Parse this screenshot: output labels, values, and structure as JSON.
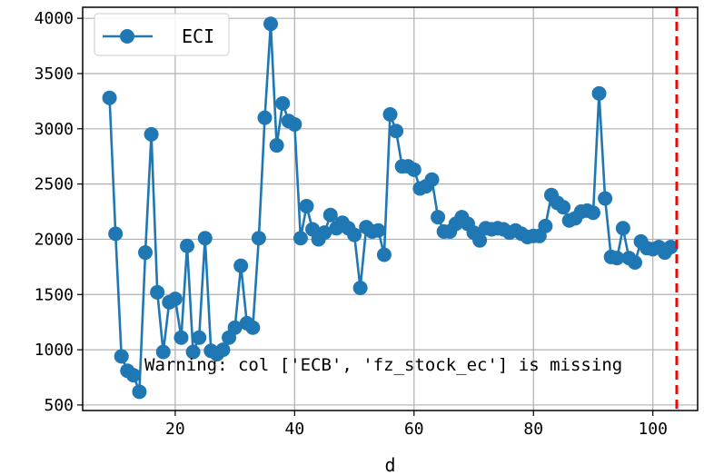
{
  "chart_data": {
    "type": "line",
    "title": "",
    "xlabel": "d",
    "ylabel": "",
    "xlim": [
      4.5,
      107.5
    ],
    "ylim": [
      450,
      4100
    ],
    "xticks": [
      20,
      40,
      60,
      80,
      100
    ],
    "yticks": [
      500,
      1000,
      1500,
      2000,
      2500,
      3000,
      3500,
      4000
    ],
    "grid": true,
    "legend_position": "top-left",
    "series": [
      {
        "name": "ECI",
        "color": "#1f77b4",
        "marker": "circle",
        "x": [
          9,
          10,
          11,
          12,
          13,
          14,
          15,
          16,
          17,
          18,
          19,
          20,
          21,
          22,
          23,
          24,
          25,
          26,
          27,
          28,
          29,
          30,
          31,
          32,
          33,
          34,
          35,
          36,
          37,
          38,
          39,
          40,
          41,
          42,
          43,
          44,
          45,
          46,
          47,
          48,
          49,
          50,
          51,
          52,
          53,
          54,
          55,
          56,
          57,
          58,
          59,
          60,
          61,
          62,
          63,
          64,
          65,
          66,
          67,
          68,
          69,
          70,
          71,
          72,
          73,
          74,
          75,
          76,
          77,
          78,
          79,
          80,
          81,
          82,
          83,
          84,
          85,
          86,
          87,
          88,
          89,
          90,
          91,
          92,
          93,
          94,
          95,
          96,
          97,
          98,
          99,
          100,
          101,
          102,
          103
        ],
        "y": [
          3280,
          2050,
          940,
          810,
          770,
          620,
          1880,
          2950,
          1520,
          980,
          1430,
          1460,
          1110,
          1940,
          980,
          1110,
          2010,
          990,
          960,
          1000,
          1110,
          1200,
          1760,
          1240,
          1200,
          2010,
          3100,
          3950,
          2850,
          3230,
          3070,
          3040,
          2010,
          2300,
          2090,
          2000,
          2060,
          2220,
          2100,
          2150,
          2100,
          2040,
          1560,
          2110,
          2070,
          2080,
          1860,
          3130,
          2980,
          2660,
          2660,
          2630,
          2460,
          2480,
          2540,
          2200,
          2070,
          2070,
          2140,
          2200,
          2140,
          2060,
          1990,
          2100,
          2090,
          2100,
          2090,
          2060,
          2080,
          2050,
          2020,
          2030,
          2030,
          2120,
          2400,
          2330,
          2290,
          2170,
          2190,
          2250,
          2260,
          2240,
          3320,
          2370,
          1840,
          1830,
          2100,
          1830,
          1790,
          1980,
          1920,
          1910,
          1930,
          1880,
          1930
        ]
      }
    ],
    "reference_line": {
      "x": 104,
      "color": "#ff0000",
      "style": "dashed"
    },
    "annotation": "Warning: col ['ECB', 'fz_stock_ec'] is missing"
  }
}
